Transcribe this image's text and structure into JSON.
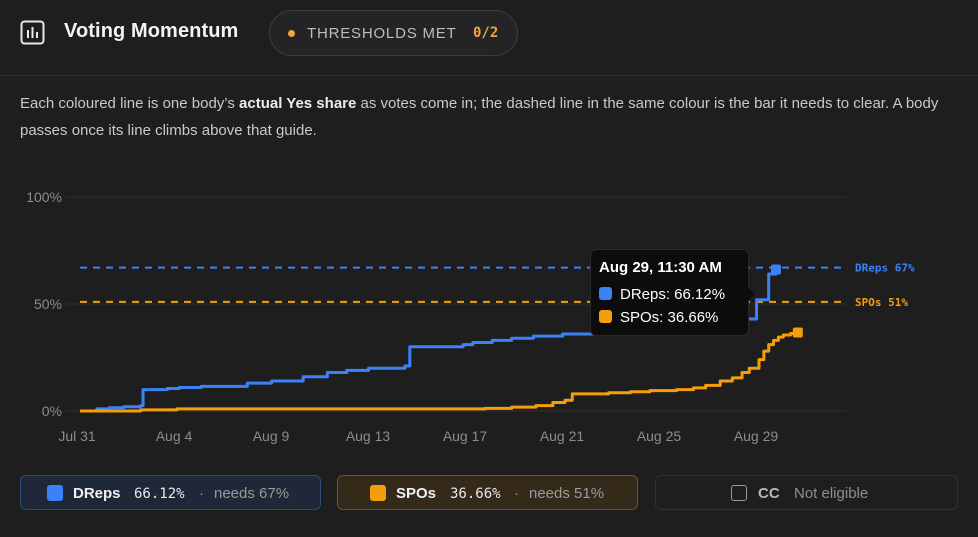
{
  "header": {
    "title": "Voting Momentum",
    "icon": "bar-chart-icon",
    "badge_label": "THRESHOLDS MET",
    "badge_count": "0/2"
  },
  "description": {
    "part1": "Each coloured line is one body’s ",
    "bold": "actual Yes share",
    "part2": " as votes come in; the dashed line in the same colour is the bar it needs to clear. A body passes once its line climbs above that guide."
  },
  "colors": {
    "dreps": "#3b82f6",
    "spos": "#f59e0b",
    "background": "#1e1e1f",
    "grid": "#303033"
  },
  "tooltip": {
    "title": "Aug 29, 11:30 AM",
    "dreps": "DReps: 66.12%",
    "spos": "SPOs: 36.66%"
  },
  "legend": {
    "dreps": {
      "name": "DReps",
      "value": "66.12%",
      "sep": "·",
      "needs": "needs 67%"
    },
    "spos": {
      "name": "SPOs",
      "value": "36.66%",
      "sep": "·",
      "needs": "needs 51%"
    },
    "cc": {
      "name": "CC",
      "status": "Not eligible"
    }
  },
  "chart_data": {
    "type": "line",
    "title": "",
    "xlabel": "",
    "ylabel": "",
    "x_ticks": [
      "Jul 31",
      "Aug 4",
      "Aug 9",
      "Aug 13",
      "Aug 17",
      "Aug 21",
      "Aug 25",
      "Aug 29"
    ],
    "y_ticks": [
      "0%",
      "50%",
      "100%"
    ],
    "ylim": [
      0,
      100
    ],
    "xlim_days": [
      0,
      32
    ],
    "grid": true,
    "thresholds": [
      {
        "name": "DReps",
        "label": "DReps 67%",
        "value": 67,
        "color": "#3b82f6"
      },
      {
        "name": "SPOs",
        "label": "SPOs 51%",
        "value": 51,
        "color": "#f59e0b"
      }
    ],
    "series": [
      {
        "name": "DReps",
        "color": "#3b82f6",
        "x": [
          0,
          0.7,
          1.2,
          1.8,
          2.5,
          2.6,
          3.6,
          4.1,
          5.0,
          6.9,
          7.9,
          9.2,
          10.2,
          11.0,
          11.9,
          13.4,
          13.6,
          15.8,
          16.2,
          17.0,
          17.8,
          18.7,
          19.9,
          21.2,
          22.7,
          24.5,
          26.0,
          27.2,
          27.9,
          28.4,
          28.7
        ],
        "y": [
          0,
          1,
          1.5,
          2,
          2.5,
          10,
          10.5,
          11,
          11.5,
          13,
          14,
          16,
          18,
          19,
          20,
          21,
          30,
          31,
          32,
          33,
          34,
          35,
          36,
          36.5,
          38,
          39.5,
          41.5,
          43,
          52,
          64,
          66.12
        ]
      },
      {
        "name": "SPOs",
        "color": "#f59e0b",
        "x": [
          0,
          2.5,
          4.0,
          8.0,
          12.0,
          16.0,
          16.7,
          17.8,
          18.8,
          19.5,
          20.0,
          20.3,
          21.8,
          22.7,
          23.5,
          24.6,
          25.3,
          25.8,
          26.4,
          26.9,
          27.3,
          27.6,
          28.0,
          28.2,
          28.4,
          28.6,
          28.8,
          29.0,
          29.3,
          29.6
        ],
        "y": [
          0,
          0.5,
          1,
          1,
          1,
          1,
          1.2,
          1.8,
          2.5,
          4,
          5,
          8,
          8.5,
          9,
          9.5,
          10,
          10.8,
          12,
          14,
          15.5,
          18,
          20,
          24,
          28,
          31,
          33,
          34.5,
          35.5,
          36.2,
          36.66
        ]
      }
    ]
  }
}
